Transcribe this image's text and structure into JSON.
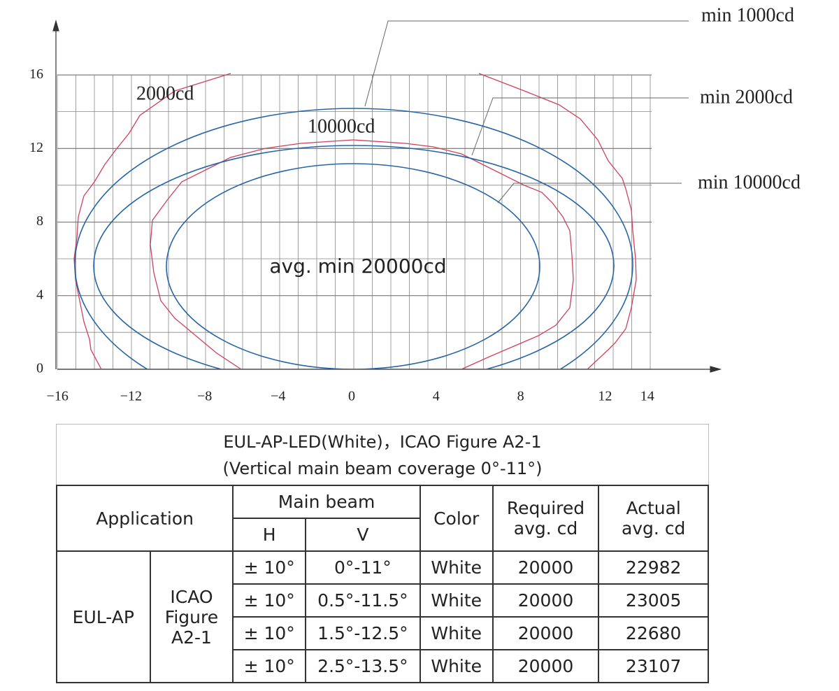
{
  "diagram": {
    "x_ticks": [
      {
        "value": -16,
        "label": "−16"
      },
      {
        "value": -12,
        "label": "−12"
      },
      {
        "value": -8,
        "label": "−8"
      },
      {
        "value": -4,
        "label": "−4"
      },
      0,
      4,
      8,
      12,
      14
    ],
    "y_ticks": [
      0,
      4,
      8,
      12,
      16
    ],
    "contour_labels": [
      "2000cd",
      "10000cd"
    ],
    "center_label": "avg. min 20000cd",
    "callouts": [
      "min 1000cd",
      "min 2000cd",
      "min 10000cd"
    ]
  },
  "table": {
    "title": [
      "EUL-AP-LED(White)，ICAO Figure A2-1",
      "(Vertical main beam coverage 0°-11°)"
    ],
    "header": {
      "application": "Application",
      "main_beam": "Main beam",
      "h": "H",
      "v": "V",
      "color": "Color",
      "required": [
        "Required",
        "avg. cd"
      ],
      "actual": [
        "Actual",
        "avg. cd"
      ]
    },
    "application": "EUL-AP",
    "figure": [
      "ICAO",
      "Figure",
      "A2-1"
    ],
    "rows": [
      [
        "± 10°",
        "0°-11°",
        "White",
        20000,
        22982
      ],
      [
        "± 10°",
        "0.5°-11.5°",
        "White",
        20000,
        23005
      ],
      [
        "± 10°",
        "1.5°-12.5°",
        "White",
        20000,
        22680
      ],
      [
        "± 10°",
        "2.5°-13.5°",
        "White",
        20000,
        23107
      ]
    ]
  }
}
